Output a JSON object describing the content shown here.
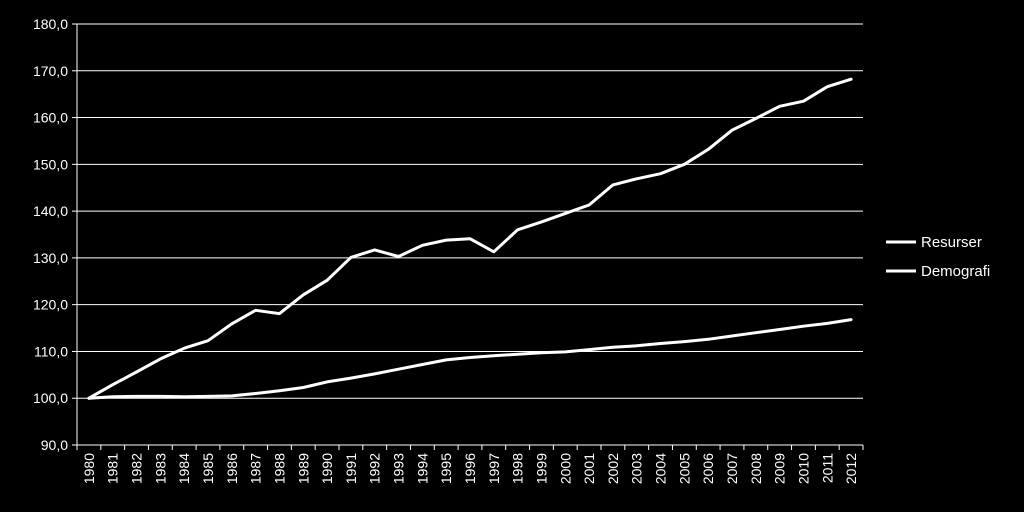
{
  "chart_data": {
    "type": "line",
    "title": "",
    "xlabel": "",
    "ylabel": "",
    "x": [
      "1980",
      "1981",
      "1982",
      "1983",
      "1984",
      "1985",
      "1986",
      "1987",
      "1988",
      "1989",
      "1990",
      "1991",
      "1992",
      "1993",
      "1994",
      "1995",
      "1996",
      "1997",
      "1998",
      "1999",
      "2000",
      "2001",
      "2002",
      "2003",
      "2004",
      "2005",
      "2006",
      "2007",
      "2008",
      "2009",
      "2010",
      "2011",
      "2012"
    ],
    "ylim": [
      90,
      180
    ],
    "yticks": [
      "90,0",
      "100,0",
      "110,0",
      "120,0",
      "130,0",
      "140,0",
      "150,0",
      "160,0",
      "170,0",
      "180,0"
    ],
    "grid": true,
    "legend_position": "right",
    "series": [
      {
        "name": "Resurser",
        "color": "#ffffff",
        "values": [
          100.0,
          102.9,
          105.6,
          108.4,
          110.7,
          112.3,
          115.9,
          118.8,
          118.1,
          122.1,
          125.2,
          130.1,
          131.7,
          130.3,
          132.7,
          133.8,
          134.1,
          131.3,
          136.0,
          137.7,
          139.5,
          141.3,
          145.6,
          146.9,
          148.0,
          150.0,
          153.2,
          157.3,
          159.8,
          162.4,
          163.5,
          166.6,
          168.2
        ]
      },
      {
        "name": "Demografi",
        "color": "#ffffff",
        "values": [
          100.0,
          100.3,
          100.4,
          100.4,
          100.3,
          100.4,
          100.5,
          101.0,
          101.6,
          102.3,
          103.5,
          104.3,
          105.2,
          106.2,
          107.2,
          108.2,
          108.7,
          109.1,
          109.4,
          109.7,
          109.9,
          110.4,
          110.9,
          111.2,
          111.7,
          112.1,
          112.6,
          113.3,
          114.0,
          114.7,
          115.4,
          116.0,
          116.8
        ]
      }
    ]
  }
}
